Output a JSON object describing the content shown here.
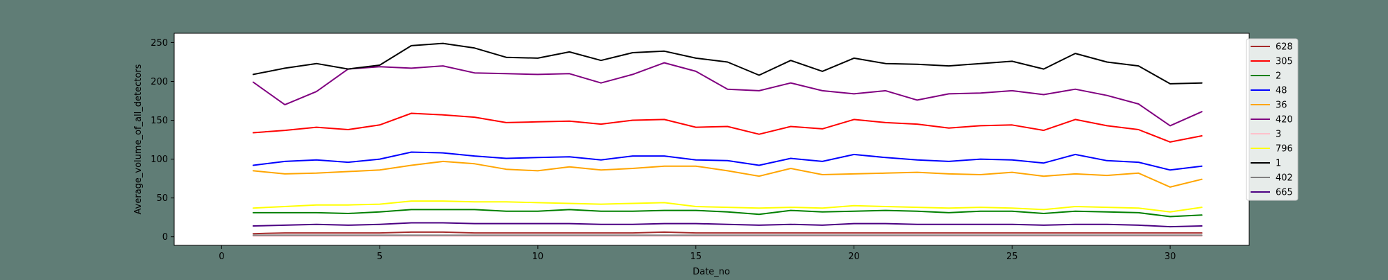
{
  "chart_data": {
    "type": "line",
    "title": "",
    "xlabel": "Date_no",
    "ylabel": "Average_volume_of_all_detectors",
    "xlim": [
      -1.5,
      32.5
    ],
    "ylim": [
      -11,
      262
    ],
    "xticks": [
      0,
      5,
      10,
      15,
      20,
      25,
      30
    ],
    "yticks": [
      0,
      50,
      100,
      150,
      200,
      250
    ],
    "grid": false,
    "legend_position": "top-right, outside plot area",
    "x": [
      1,
      2,
      3,
      4,
      5,
      6,
      7,
      8,
      9,
      10,
      11,
      12,
      13,
      14,
      15,
      16,
      17,
      18,
      19,
      20,
      21,
      22,
      23,
      24,
      25,
      26,
      27,
      28,
      29,
      30,
      31
    ],
    "series": [
      {
        "name": "628",
        "color": "#a52a2a",
        "values": [
          4,
          5,
          5,
          5,
          5,
          6,
          6,
          5,
          5,
          5,
          5,
          5,
          5,
          6,
          5,
          5,
          5,
          5,
          5,
          5,
          5,
          5,
          5,
          5,
          5,
          5,
          5,
          5,
          5,
          5,
          5
        ]
      },
      {
        "name": "305",
        "color": "#ff0000",
        "values": [
          134,
          137,
          141,
          138,
          144,
          159,
          157,
          154,
          147,
          148,
          149,
          145,
          150,
          151,
          141,
          142,
          132,
          142,
          139,
          151,
          147,
          145,
          140,
          143,
          144,
          137,
          151,
          143,
          138,
          122,
          130
        ]
      },
      {
        "name": "2",
        "color": "#008000",
        "values": [
          31,
          31,
          31,
          30,
          32,
          35,
          35,
          35,
          33,
          33,
          35,
          33,
          33,
          34,
          34,
          32,
          29,
          34,
          32,
          33,
          34,
          33,
          31,
          33,
          33,
          30,
          33,
          32,
          31,
          26,
          28
        ]
      },
      {
        "name": "48",
        "color": "#0000ff",
        "values": [
          92,
          97,
          99,
          96,
          100,
          109,
          108,
          104,
          101,
          102,
          103,
          99,
          104,
          104,
          99,
          98,
          92,
          101,
          97,
          106,
          102,
          99,
          97,
          100,
          99,
          95,
          106,
          98,
          96,
          86,
          91
        ]
      },
      {
        "name": "36",
        "color": "#ffa500",
        "values": [
          85,
          81,
          82,
          84,
          86,
          92,
          97,
          94,
          87,
          85,
          90,
          86,
          88,
          91,
          91,
          85,
          78,
          88,
          80,
          81,
          82,
          83,
          81,
          80,
          83,
          78,
          81,
          79,
          82,
          64,
          74
        ]
      },
      {
        "name": "420",
        "color": "#800080",
        "values": [
          199,
          170,
          187,
          216,
          219,
          217,
          220,
          211,
          210,
          209,
          210,
          198,
          209,
          224,
          213,
          190,
          188,
          198,
          188,
          184,
          188,
          176,
          184,
          185,
          188,
          183,
          190,
          182,
          171,
          143,
          161
        ]
      },
      {
        "name": "3",
        "color": "#ffc0cb",
        "values": [
          1,
          1,
          1,
          1,
          1,
          1,
          1,
          1,
          1,
          1,
          1,
          1,
          1,
          1,
          1,
          1,
          1,
          1,
          1,
          1,
          1,
          1,
          1,
          1,
          1,
          1,
          1,
          1,
          1,
          1,
          1
        ]
      },
      {
        "name": "796",
        "color": "#ffff00",
        "values": [
          37,
          39,
          41,
          41,
          42,
          46,
          46,
          45,
          45,
          44,
          43,
          42,
          43,
          44,
          39,
          38,
          37,
          38,
          37,
          40,
          39,
          38,
          37,
          38,
          37,
          35,
          39,
          38,
          37,
          32,
          38
        ]
      },
      {
        "name": "1",
        "color": "#000000",
        "values": [
          209,
          217,
          223,
          216,
          221,
          246,
          249,
          243,
          231,
          230,
          238,
          227,
          237,
          239,
          230,
          225,
          208,
          227,
          213,
          230,
          223,
          222,
          220,
          223,
          226,
          216,
          236,
          225,
          220,
          197,
          198
        ]
      },
      {
        "name": "402",
        "color": "#808080",
        "values": [
          2,
          2,
          2,
          2,
          2,
          2,
          2,
          2,
          2,
          2,
          2,
          2,
          2,
          2,
          2,
          2,
          2,
          2,
          2,
          2,
          2,
          2,
          2,
          2,
          2,
          2,
          2,
          2,
          2,
          2,
          2
        ]
      },
      {
        "name": "665",
        "color": "#4b0082",
        "values": [
          14,
          15,
          16,
          15,
          16,
          18,
          18,
          17,
          17,
          17,
          17,
          16,
          16,
          17,
          17,
          16,
          15,
          16,
          15,
          17,
          17,
          16,
          16,
          16,
          16,
          15,
          16,
          16,
          15,
          13,
          14
        ]
      }
    ]
  }
}
